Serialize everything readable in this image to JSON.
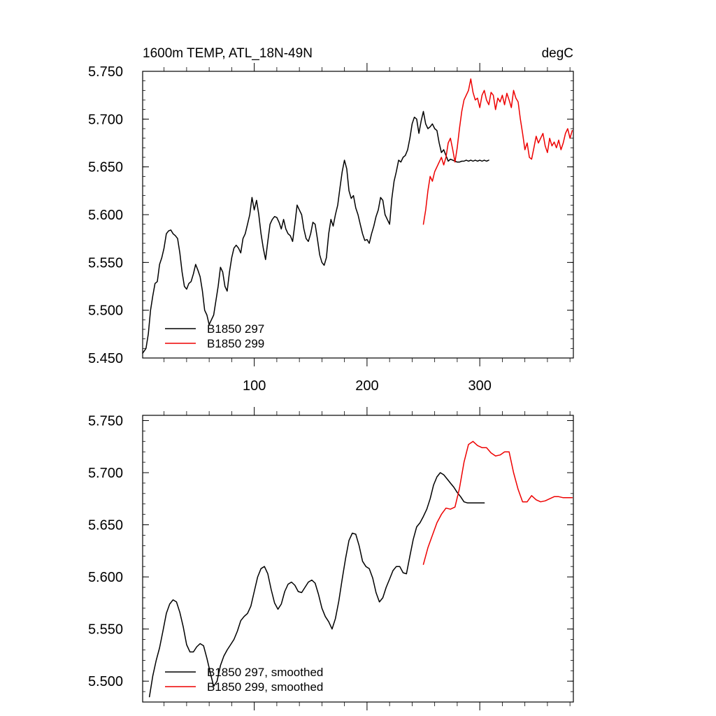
{
  "colors": {
    "run_297": "#000000",
    "run_299": "#ee0000",
    "axis": "#000000",
    "background": "#ffffff"
  },
  "chart_data": [
    {
      "type": "line",
      "panel": "top",
      "title": "1600m TEMP, ATL_18N-49N",
      "units": "degC",
      "xlim": [
        1,
        383
      ],
      "ylim": [
        5.45,
        5.75
      ],
      "xticks": [
        100,
        200,
        300
      ],
      "xtick_labels": [
        "100",
        "200",
        "300"
      ],
      "yticks": [
        5.45,
        5.5,
        5.55,
        5.6,
        5.65,
        5.7,
        5.75
      ],
      "ytick_labels": [
        "5.450",
        "5.500",
        "5.550",
        "5.600",
        "5.650",
        "5.700",
        "5.750"
      ],
      "legend_position": "bottom-left",
      "series": [
        {
          "name": "B1850 297",
          "color": "#000000",
          "x": [
            1,
            4,
            6,
            8,
            10,
            12,
            14,
            16,
            18,
            20,
            22,
            24,
            26,
            28,
            30,
            32,
            34,
            36,
            38,
            40,
            42,
            44,
            46,
            48,
            50,
            52,
            54,
            56,
            58,
            60,
            62,
            64,
            66,
            68,
            70,
            72,
            74,
            76,
            78,
            80,
            82,
            84,
            86,
            88,
            90,
            92,
            94,
            96,
            98,
            100,
            102,
            104,
            106,
            108,
            110,
            112,
            114,
            116,
            118,
            120,
            122,
            124,
            126,
            128,
            130,
            132,
            134,
            136,
            138,
            140,
            142,
            144,
            146,
            148,
            150,
            152,
            154,
            156,
            158,
            160,
            162,
            164,
            166,
            168,
            170,
            172,
            174,
            176,
            178,
            180,
            182,
            184,
            186,
            188,
            190,
            192,
            194,
            196,
            198,
            200,
            202,
            204,
            206,
            208,
            210,
            212,
            214,
            216,
            218,
            220,
            222,
            224,
            226,
            228,
            230,
            232,
            234,
            236,
            238,
            240,
            242,
            244,
            246,
            248,
            250,
            252,
            254,
            256,
            258,
            260,
            262,
            264,
            266,
            268,
            270,
            272,
            274,
            276,
            278,
            280,
            282,
            284,
            286,
            288,
            290,
            292,
            294,
            296,
            298,
            300,
            302,
            304,
            306,
            308
          ],
          "values": [
            5.455,
            5.46,
            5.475,
            5.5,
            5.515,
            5.528,
            5.53,
            5.548,
            5.555,
            5.565,
            5.58,
            5.583,
            5.584,
            5.58,
            5.578,
            5.575,
            5.56,
            5.54,
            5.525,
            5.522,
            5.528,
            5.53,
            5.538,
            5.548,
            5.542,
            5.535,
            5.52,
            5.5,
            5.495,
            5.485,
            5.49,
            5.495,
            5.51,
            5.525,
            5.545,
            5.54,
            5.525,
            5.52,
            5.54,
            5.555,
            5.565,
            5.568,
            5.565,
            5.56,
            5.575,
            5.58,
            5.59,
            5.6,
            5.618,
            5.605,
            5.615,
            5.6,
            5.58,
            5.565,
            5.553,
            5.572,
            5.59,
            5.595,
            5.598,
            5.597,
            5.592,
            5.585,
            5.595,
            5.585,
            5.58,
            5.578,
            5.572,
            5.59,
            5.61,
            5.605,
            5.6,
            5.585,
            5.575,
            5.572,
            5.58,
            5.592,
            5.59,
            5.575,
            5.558,
            5.55,
            5.547,
            5.555,
            5.58,
            5.595,
            5.588,
            5.6,
            5.61,
            5.628,
            5.645,
            5.657,
            5.648,
            5.625,
            5.617,
            5.62,
            5.607,
            5.6,
            5.59,
            5.58,
            5.573,
            5.574,
            5.57,
            5.58,
            5.588,
            5.598,
            5.605,
            5.618,
            5.615,
            5.6,
            5.595,
            5.59,
            5.617,
            5.635,
            5.645,
            5.657,
            5.655,
            5.66,
            5.662,
            5.668,
            5.68,
            5.695,
            5.702,
            5.7,
            5.685,
            5.698,
            5.708,
            5.695,
            5.69,
            5.692,
            5.695,
            5.69,
            5.688,
            5.675,
            5.665,
            5.668,
            5.662,
            5.656,
            5.658,
            5.657,
            5.656,
            5.655,
            5.655,
            5.656,
            5.656,
            5.657,
            5.656,
            5.657,
            5.656,
            5.657,
            5.656,
            5.657,
            5.656,
            5.657,
            5.656,
            5.657
          ]
        },
        {
          "name": "B1850 299",
          "color": "#ee0000",
          "x": [
            250,
            252,
            254,
            256,
            258,
            260,
            262,
            264,
            266,
            268,
            270,
            272,
            274,
            276,
            278,
            280,
            282,
            284,
            286,
            288,
            290,
            292,
            294,
            296,
            298,
            300,
            302,
            304,
            306,
            308,
            310,
            312,
            314,
            316,
            318,
            320,
            322,
            324,
            326,
            328,
            330,
            332,
            334,
            336,
            338,
            340,
            342,
            344,
            346,
            348,
            350,
            352,
            354,
            356,
            358,
            360,
            362,
            364,
            366,
            368,
            370,
            372,
            374,
            376,
            378,
            380,
            382
          ],
          "values": [
            5.59,
            5.605,
            5.625,
            5.64,
            5.635,
            5.645,
            5.65,
            5.655,
            5.66,
            5.652,
            5.66,
            5.675,
            5.68,
            5.668,
            5.655,
            5.67,
            5.69,
            5.708,
            5.72,
            5.725,
            5.73,
            5.742,
            5.728,
            5.72,
            5.722,
            5.712,
            5.725,
            5.73,
            5.72,
            5.715,
            5.728,
            5.725,
            5.71,
            5.722,
            5.718,
            5.725,
            5.715,
            5.727,
            5.72,
            5.712,
            5.73,
            5.722,
            5.718,
            5.7,
            5.685,
            5.668,
            5.675,
            5.66,
            5.658,
            5.67,
            5.682,
            5.675,
            5.68,
            5.685,
            5.672,
            5.665,
            5.68,
            5.672,
            5.676,
            5.67,
            5.678,
            5.668,
            5.675,
            5.685,
            5.69,
            5.68,
            5.688
          ]
        }
      ]
    },
    {
      "type": "line",
      "panel": "bottom",
      "title": "",
      "xlim": [
        1,
        383
      ],
      "ylim": [
        5.48,
        5.755
      ],
      "yticks": [
        5.5,
        5.55,
        5.6,
        5.65,
        5.7,
        5.75
      ],
      "ytick_labels": [
        "5.500",
        "5.550",
        "5.600",
        "5.650",
        "5.700",
        "5.750"
      ],
      "legend_position": "bottom-left",
      "series": [
        {
          "name": "B1850 297, smoothed",
          "color": "#000000",
          "x": [
            7,
            10,
            13,
            16,
            19,
            22,
            25,
            28,
            31,
            34,
            37,
            40,
            43,
            46,
            49,
            52,
            55,
            58,
            61,
            64,
            67,
            70,
            73,
            76,
            79,
            82,
            85,
            88,
            91,
            94,
            97,
            100,
            103,
            106,
            109,
            112,
            115,
            118,
            121,
            124,
            127,
            130,
            133,
            136,
            139,
            142,
            145,
            148,
            151,
            154,
            157,
            160,
            163,
            166,
            169,
            172,
            175,
            178,
            181,
            184,
            187,
            190,
            193,
            196,
            199,
            202,
            205,
            208,
            211,
            214,
            217,
            220,
            223,
            226,
            229,
            232,
            235,
            238,
            241,
            244,
            247,
            250,
            253,
            256,
            259,
            262,
            265,
            268,
            271,
            274,
            277,
            280,
            283,
            286,
            289,
            292,
            295,
            298,
            301,
            304
          ],
          "values": [
            5.485,
            5.505,
            5.52,
            5.532,
            5.548,
            5.565,
            5.574,
            5.578,
            5.576,
            5.566,
            5.552,
            5.535,
            5.528,
            5.528,
            5.533,
            5.536,
            5.534,
            5.522,
            5.508,
            5.495,
            5.5,
            5.515,
            5.524,
            5.53,
            5.535,
            5.54,
            5.548,
            5.558,
            5.562,
            5.565,
            5.572,
            5.586,
            5.6,
            5.608,
            5.61,
            5.603,
            5.588,
            5.575,
            5.569,
            5.574,
            5.586,
            5.593,
            5.595,
            5.592,
            5.586,
            5.585,
            5.59,
            5.595,
            5.597,
            5.594,
            5.583,
            5.57,
            5.562,
            5.557,
            5.55,
            5.56,
            5.577,
            5.598,
            5.618,
            5.635,
            5.642,
            5.641,
            5.63,
            5.615,
            5.61,
            5.608,
            5.599,
            5.585,
            5.576,
            5.58,
            5.59,
            5.598,
            5.606,
            5.61,
            5.61,
            5.604,
            5.603,
            5.62,
            5.636,
            5.648,
            5.652,
            5.658,
            5.665,
            5.675,
            5.688,
            5.696,
            5.7,
            5.698,
            5.694,
            5.69,
            5.686,
            5.681,
            5.677,
            5.672,
            5.671,
            5.671,
            5.671,
            5.671,
            5.671,
            5.671
          ]
        },
        {
          "name": "B1850 299, smoothed",
          "color": "#ee0000",
          "x": [
            250,
            254,
            258,
            262,
            266,
            270,
            274,
            278,
            282,
            286,
            290,
            294,
            298,
            302,
            306,
            310,
            314,
            318,
            322,
            326,
            330,
            334,
            338,
            342,
            346,
            350,
            354,
            358,
            362,
            366,
            370,
            374,
            378,
            382
          ],
          "values": [
            5.612,
            5.628,
            5.64,
            5.652,
            5.66,
            5.666,
            5.665,
            5.667,
            5.685,
            5.71,
            5.727,
            5.73,
            5.726,
            5.724,
            5.724,
            5.719,
            5.716,
            5.717,
            5.72,
            5.72,
            5.7,
            5.684,
            5.672,
            5.672,
            5.678,
            5.674,
            5.672,
            5.673,
            5.675,
            5.677,
            5.677,
            5.676,
            5.676,
            5.676
          ]
        }
      ]
    }
  ]
}
